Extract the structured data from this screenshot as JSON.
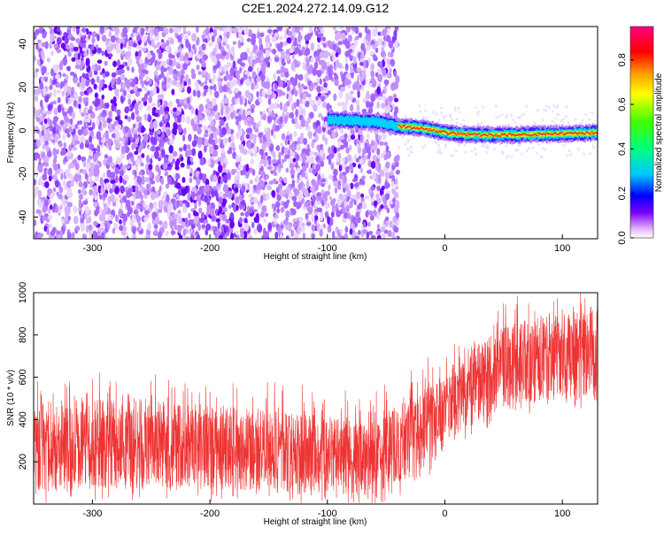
{
  "title": "C2E1.2024.272.14.09.G12",
  "chart_data": [
    {
      "type": "heatmap",
      "xlabel": "Height of straight line (km)",
      "ylabel": "Frequency (Hz)",
      "xlim": [
        -350,
        130
      ],
      "ylim": [
        -50,
        48
      ],
      "xticks": [
        -300,
        -200,
        -100,
        0,
        100
      ],
      "yticks": [
        -40,
        -20,
        0,
        20,
        40
      ],
      "colorbar": {
        "label": "Normalized spectral amplitude",
        "range": [
          0.0,
          0.95
        ],
        "ticks": [
          0.0,
          0.2,
          0.4,
          0.6,
          0.8
        ]
      },
      "signal_track": [
        {
          "x": -100,
          "y": 5
        },
        {
          "x": -60,
          "y": 4
        },
        {
          "x": -40,
          "y": 2
        },
        {
          "x": -20,
          "y": 1
        },
        {
          "x": 0,
          "y": -1
        },
        {
          "x": 20,
          "y": -2
        },
        {
          "x": 60,
          "y": -2
        },
        {
          "x": 100,
          "y": -1.5
        },
        {
          "x": 130,
          "y": -1
        }
      ]
    },
    {
      "type": "line",
      "xlabel": "Height of straight line (km)",
      "ylabel": "SNR (10 * v/v)",
      "xlim": [
        -350,
        130
      ],
      "ylim": [
        0,
        1000
      ],
      "xticks": [
        -300,
        -200,
        -100,
        0,
        100
      ],
      "yticks": [
        200,
        400,
        600,
        800,
        1000
      ],
      "series": [
        {
          "color": "#ee3333",
          "trend": [
            {
              "x": -350,
              "lo": 60,
              "hi": 480
            },
            {
              "x": -250,
              "lo": 80,
              "hi": 500
            },
            {
              "x": -150,
              "lo": 60,
              "hi": 440
            },
            {
              "x": -60,
              "lo": 40,
              "hi": 400
            },
            {
              "x": -30,
              "lo": 120,
              "hi": 500
            },
            {
              "x": 0,
              "lo": 250,
              "hi": 620
            },
            {
              "x": 20,
              "lo": 380,
              "hi": 760
            },
            {
              "x": 60,
              "lo": 470,
              "hi": 860
            },
            {
              "x": 130,
              "lo": 520,
              "hi": 940
            }
          ]
        }
      ]
    }
  ]
}
